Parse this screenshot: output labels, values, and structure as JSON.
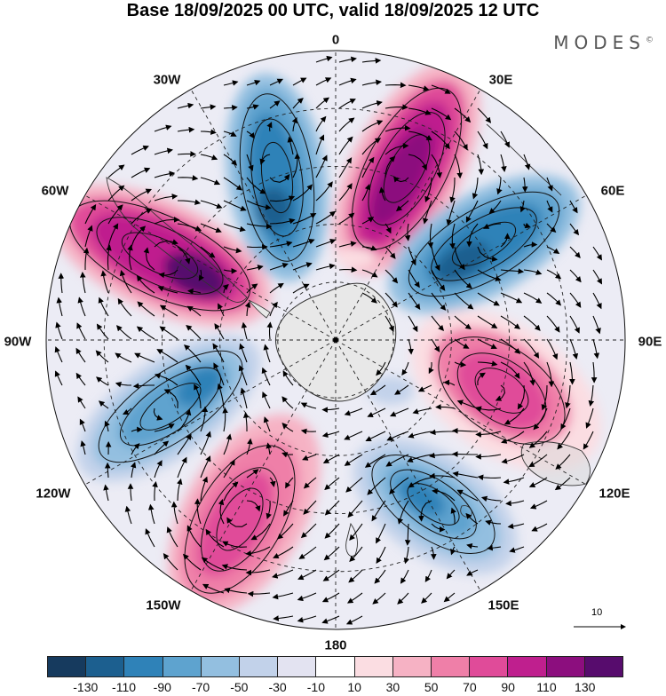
{
  "title": "Base 18/09/2025 00 UTC, valid 18/09/2025 12 UTC",
  "brand": "MODES",
  "brand_mark": "©",
  "longitude_labels": {
    "lon_0": "0",
    "lon_30e": "30E",
    "lon_60e": "60E",
    "lon_90e": "90E",
    "lon_120e": "120E",
    "lon_150e": "150E",
    "lon_180": "180",
    "lon_150w": "150W",
    "lon_120w": "120W",
    "lon_90w": "90W",
    "lon_60w": "60W",
    "lon_30w": "30W"
  },
  "reference_vector": {
    "label": "10"
  },
  "colorbar": {
    "colors": [
      "#163a5e",
      "#1c5f8f",
      "#2f82b8",
      "#5ea3cf",
      "#93bfe0",
      "#c2d2ea",
      "#e3e3f1",
      "#ffffff",
      "#fbdde2",
      "#f6b2c4",
      "#ef7fa8",
      "#e04b99",
      "#bf1f8e",
      "#8c0e7e",
      "#570c6d"
    ],
    "tick_labels": [
      "-130",
      "-110",
      "-90",
      "-70",
      "-50",
      "-30",
      "-10",
      "10",
      "30",
      "50",
      "70",
      "90",
      "110",
      "130"
    ]
  },
  "colors": {
    "land_outline": "#333333",
    "gridline": "#222222",
    "antarctica": "#e8e8e8"
  }
}
